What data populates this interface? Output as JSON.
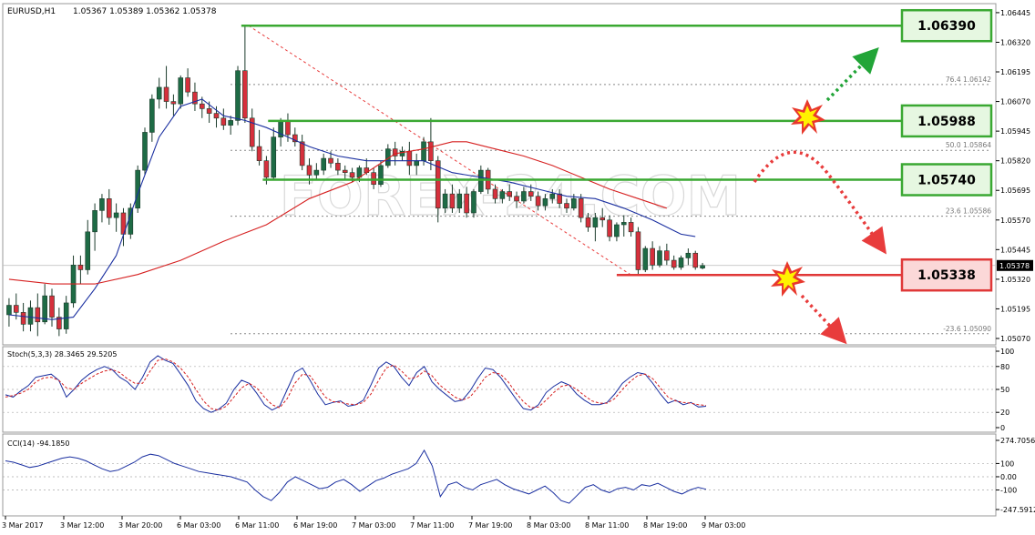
{
  "header": {
    "symbol": "EURUSD,H1",
    "ohlc": "1.05367 1.05389 1.05362 1.05378"
  },
  "watermark": "FOREX-24.COM",
  "colors": {
    "bull": "#1e6b45",
    "bear": "#d6303c",
    "fast_ma": "#1a2fa0",
    "slow_ma": "#d62020",
    "resistance": "#3aa832",
    "support": "#e03838",
    "resistance_box_fill": "#e6f7e1",
    "support_box_fill": "#fbd8d8",
    "stoch_main": "#1a2fa0",
    "stoch_signal": "#d62020",
    "cci": "#1a2fa0"
  },
  "chart_data": [
    {
      "type": "candlestick",
      "panel": "main",
      "ylim": [
        1.0507,
        1.0646
      ],
      "y_ticks": [
        "1.06445",
        "1.06320",
        "1.06195",
        "1.06070",
        "1.05945",
        "1.05820",
        "1.05695",
        "1.05570",
        "1.05445",
        "1.05320",
        "1.05195",
        "1.05070"
      ],
      "current_price": "1.05378",
      "x_ticks": [
        "3 Mar 2017",
        "3 Mar 12:00",
        "3 Mar 20:00",
        "6 Mar 03:00",
        "6 Mar 11:00",
        "6 Mar 19:00",
        "7 Mar 03:00",
        "7 Mar 11:00",
        "7 Mar 19:00",
        "8 Mar 03:00",
        "8 Mar 11:00",
        "8 Mar 19:00",
        "9 Mar 03:00"
      ],
      "candles": [
        [
          1.0517,
          1.0524,
          1.0512,
          1.0521
        ],
        [
          1.0521,
          1.0526,
          1.0515,
          1.0518
        ],
        [
          1.0518,
          1.0522,
          1.051,
          1.0513
        ],
        [
          1.0513,
          1.0523,
          1.051,
          1.052
        ],
        [
          1.052,
          1.0526,
          1.0508,
          1.0514
        ],
        [
          1.0514,
          1.053,
          1.0513,
          1.0525
        ],
        [
          1.0525,
          1.0528,
          1.0512,
          1.0516
        ],
        [
          1.0516,
          1.052,
          1.0508,
          1.0511
        ],
        [
          1.0511,
          1.0525,
          1.0509,
          1.0522
        ],
        [
          1.0522,
          1.0542,
          1.052,
          1.0538
        ],
        [
          1.0538,
          1.0542,
          1.053,
          1.0536
        ],
        [
          1.0536,
          1.0557,
          1.0534,
          1.0552
        ],
        [
          1.0552,
          1.0564,
          1.0544,
          1.0561
        ],
        [
          1.0561,
          1.0568,
          1.0556,
          1.0566
        ],
        [
          1.0566,
          1.057,
          1.0555,
          1.0558
        ],
        [
          1.0558,
          1.0564,
          1.0552,
          1.056
        ],
        [
          1.056,
          1.0562,
          1.0546,
          1.0551
        ],
        [
          1.0551,
          1.0564,
          1.0549,
          1.0562
        ],
        [
          1.0562,
          1.058,
          1.056,
          1.0578
        ],
        [
          1.0578,
          1.0596,
          1.0576,
          1.0594
        ],
        [
          1.0594,
          1.061,
          1.059,
          1.0608
        ],
        [
          1.0608,
          1.0617,
          1.0604,
          1.0613
        ],
        [
          1.0613,
          1.0622,
          1.0604,
          1.0607
        ],
        [
          1.0607,
          1.061,
          1.0601,
          1.0606
        ],
        [
          1.0606,
          1.0618,
          1.0604,
          1.0617
        ],
        [
          1.0617,
          1.0621,
          1.0609,
          1.0611
        ],
        [
          1.0611,
          1.0615,
          1.0603,
          1.0606
        ],
        [
          1.0606,
          1.0609,
          1.06,
          1.0604
        ],
        [
          1.0604,
          1.0607,
          1.0598,
          1.0602
        ],
        [
          1.0602,
          1.0605,
          1.0596,
          1.06
        ],
        [
          1.06,
          1.0604,
          1.0595,
          1.0597
        ],
        [
          1.0597,
          1.0601,
          1.0593,
          1.0599
        ],
        [
          1.0599,
          1.0622,
          1.0597,
          1.062
        ],
        [
          1.062,
          1.0639,
          1.0598,
          1.06
        ],
        [
          1.06,
          1.0604,
          1.0586,
          1.0588
        ],
        [
          1.0588,
          1.0595,
          1.058,
          1.0582
        ],
        [
          1.0582,
          1.0584,
          1.0572,
          1.0575
        ],
        [
          1.0575,
          1.0596,
          1.0574,
          1.0592
        ],
        [
          1.0592,
          1.06,
          1.0588,
          1.0599
        ],
        [
          1.0599,
          1.0602,
          1.059,
          1.0593
        ],
        [
          1.0593,
          1.0596,
          1.0588,
          1.059
        ],
        [
          1.059,
          1.0593,
          1.0578,
          1.058
        ],
        [
          1.058,
          1.0583,
          1.0572,
          1.0576
        ],
        [
          1.0576,
          1.0581,
          1.0574,
          1.0578
        ],
        [
          1.0578,
          1.0585,
          1.0576,
          1.0583
        ],
        [
          1.0583,
          1.0586,
          1.0579,
          1.0581
        ],
        [
          1.0581,
          1.0583,
          1.0576,
          1.0578
        ],
        [
          1.0578,
          1.058,
          1.0574,
          1.0577
        ],
        [
          1.0577,
          1.0579,
          1.0573,
          1.0575
        ],
        [
          1.0575,
          1.058,
          1.0573,
          1.0579
        ],
        [
          1.0579,
          1.0583,
          1.0576,
          1.0577
        ],
        [
          1.0577,
          1.0579,
          1.057,
          1.0572
        ],
        [
          1.0572,
          1.0582,
          1.0571,
          1.058
        ],
        [
          1.058,
          1.0589,
          1.0579,
          1.0587
        ],
        [
          1.0587,
          1.059,
          1.058,
          1.0584
        ],
        [
          1.0584,
          1.0588,
          1.0582,
          1.0586
        ],
        [
          1.0586,
          1.059,
          1.0576,
          1.058
        ],
        [
          1.058,
          1.0585,
          1.0576,
          1.0582
        ],
        [
          1.0582,
          1.0592,
          1.058,
          1.059
        ],
        [
          1.059,
          1.06,
          1.0578,
          1.0582
        ],
        [
          1.0582,
          1.0584,
          1.0556,
          1.0562
        ],
        [
          1.0562,
          1.057,
          1.056,
          1.0568
        ],
        [
          1.0568,
          1.0572,
          1.056,
          1.0562
        ],
        [
          1.0562,
          1.057,
          1.056,
          1.0568
        ],
        [
          1.0568,
          1.0571,
          1.0558,
          1.056
        ],
        [
          1.056,
          1.057,
          1.0558,
          1.0569
        ],
        [
          1.0569,
          1.058,
          1.0568,
          1.0578
        ],
        [
          1.0578,
          1.0579,
          1.0568,
          1.057
        ],
        [
          1.057,
          1.0572,
          1.0564,
          1.0566
        ],
        [
          1.0566,
          1.057,
          1.0564,
          1.0569
        ],
        [
          1.0569,
          1.0572,
          1.0565,
          1.0567
        ],
        [
          1.0567,
          1.0569,
          1.0562,
          1.0565
        ],
        [
          1.0565,
          1.0571,
          1.0564,
          1.0569
        ],
        [
          1.0569,
          1.0572,
          1.0565,
          1.0567
        ],
        [
          1.0567,
          1.0569,
          1.0561,
          1.0563
        ],
        [
          1.0563,
          1.0568,
          1.0561,
          1.0566
        ],
        [
          1.0566,
          1.057,
          1.0564,
          1.0568
        ],
        [
          1.0568,
          1.057,
          1.0562,
          1.0564
        ],
        [
          1.0564,
          1.0566,
          1.056,
          1.0562
        ],
        [
          1.0562,
          1.0568,
          1.0561,
          1.0566
        ],
        [
          1.0566,
          1.0568,
          1.0556,
          1.0558
        ],
        [
          1.0558,
          1.056,
          1.0552,
          1.0554
        ],
        [
          1.0554,
          1.056,
          1.0548,
          1.0558
        ],
        [
          1.0558,
          1.0562,
          1.0554,
          1.0557
        ],
        [
          1.0557,
          1.0559,
          1.0548,
          1.055
        ],
        [
          1.055,
          1.0556,
          1.0548,
          1.0555
        ],
        [
          1.0555,
          1.0559,
          1.055,
          1.0556
        ],
        [
          1.0556,
          1.0558,
          1.055,
          1.0552
        ],
        [
          1.0552,
          1.0554,
          1.0534,
          1.0536
        ],
        [
          1.0536,
          1.0546,
          1.0535,
          1.0545
        ],
        [
          1.0545,
          1.0548,
          1.0536,
          1.0538
        ],
        [
          1.0538,
          1.0546,
          1.0537,
          1.0544
        ],
        [
          1.0544,
          1.0547,
          1.0538,
          1.054
        ],
        [
          1.054,
          1.0542,
          1.0536,
          1.0537
        ],
        [
          1.0537,
          1.0542,
          1.0536,
          1.0541
        ],
        [
          1.0541,
          1.0545,
          1.0538,
          1.0543
        ],
        [
          1.0543,
          1.0544,
          1.0536,
          1.0537
        ],
        [
          1.05367,
          1.05389,
          1.05362,
          1.05378
        ]
      ],
      "fast_ma": [
        [
          0,
          1.0517
        ],
        [
          6,
          1.0515
        ],
        [
          9,
          1.0516
        ],
        [
          12,
          1.0528
        ],
        [
          15,
          1.0542
        ],
        [
          18,
          1.0568
        ],
        [
          21,
          1.0592
        ],
        [
          24,
          1.0605
        ],
        [
          27,
          1.0608
        ],
        [
          30,
          1.0601
        ],
        [
          33,
          1.0599
        ],
        [
          36,
          1.0596
        ],
        [
          39,
          1.0592
        ],
        [
          42,
          1.0588
        ],
        [
          46,
          1.0584
        ],
        [
          50,
          1.0582
        ],
        [
          54,
          1.0582
        ],
        [
          58,
          1.0582
        ],
        [
          62,
          1.0577
        ],
        [
          66,
          1.0575
        ],
        [
          70,
          1.0573
        ],
        [
          74,
          1.057
        ],
        [
          78,
          1.0567
        ],
        [
          82,
          1.0566
        ],
        [
          86,
          1.0562
        ],
        [
          90,
          1.0557
        ],
        [
          94,
          1.0551
        ],
        [
          96,
          1.055
        ]
      ],
      "slow_ma": [
        [
          0,
          1.0532
        ],
        [
          6,
          1.053
        ],
        [
          12,
          1.053
        ],
        [
          18,
          1.0534
        ],
        [
          24,
          1.054
        ],
        [
          30,
          1.0548
        ],
        [
          36,
          1.0555
        ],
        [
          42,
          1.0566
        ],
        [
          48,
          1.0573
        ],
        [
          54,
          1.0585
        ],
        [
          58,
          1.0587
        ],
        [
          62,
          1.059
        ],
        [
          64,
          1.059
        ],
        [
          68,
          1.0587
        ],
        [
          72,
          1.0584
        ],
        [
          76,
          1.058
        ],
        [
          80,
          1.0575
        ],
        [
          84,
          1.057
        ],
        [
          88,
          1.0566
        ],
        [
          92,
          1.0562
        ]
      ],
      "fibonacci_levels": [
        {
          "label": "76.4 1.06142",
          "value": 1.06142
        },
        {
          "label": "50.0 1.05864",
          "value": 1.05864
        },
        {
          "label": "23.6 1.05586",
          "value": 1.05586
        },
        {
          "label": "-23.6 1.05090",
          "value": 1.0509
        }
      ],
      "horizontal_levels": [
        {
          "label": "1.06390",
          "value": 1.0639,
          "kind": "resistance"
        },
        {
          "label": "1.05988",
          "value": 1.05988,
          "kind": "resistance"
        },
        {
          "label": "1.05740",
          "value": 1.0574,
          "kind": "resistance"
        },
        {
          "label": "1.05338",
          "value": 1.05338,
          "kind": "support"
        }
      ]
    },
    {
      "type": "line",
      "panel": "stochastic",
      "title": "Stoch(5,3,3) 28.3465 29.5205",
      "ylim": [
        0,
        100
      ],
      "y_ticks": [
        "100",
        "80",
        "50",
        "20",
        "0"
      ],
      "series": [
        {
          "values": [
            43,
            40,
            48,
            55,
            66,
            68,
            70,
            62,
            40,
            50,
            62,
            70,
            76,
            80,
            76,
            66,
            60,
            50,
            66,
            86,
            94,
            88,
            84,
            70,
            55,
            35,
            25,
            20,
            24,
            32,
            50,
            62,
            58,
            45,
            30,
            23,
            28,
            50,
            72,
            78,
            62,
            44,
            30,
            33,
            35,
            28,
            30,
            36,
            56,
            78,
            86,
            80,
            66,
            55,
            72,
            80,
            60,
            50,
            42,
            34,
            36,
            48,
            64,
            78,
            76,
            66,
            52,
            38,
            25,
            23,
            30,
            46,
            54,
            60,
            56,
            44,
            36,
            30,
            30,
            33,
            44,
            58,
            66,
            72,
            70,
            58,
            44,
            32,
            36,
            30,
            33,
            27,
            28
          ]
        },
        {
          "values": [
            40,
            42,
            45,
            50,
            60,
            65,
            66,
            62,
            52,
            50,
            58,
            64,
            70,
            74,
            76,
            72,
            64,
            58,
            58,
            74,
            88,
            90,
            86,
            78,
            66,
            50,
            35,
            25,
            23,
            28,
            40,
            52,
            58,
            52,
            40,
            30,
            26,
            38,
            58,
            70,
            68,
            54,
            40,
            34,
            33,
            31,
            30,
            33,
            44,
            62,
            78,
            82,
            74,
            64,
            66,
            74,
            68,
            56,
            48,
            40,
            36,
            40,
            52,
            66,
            72,
            70,
            60,
            46,
            34,
            26,
            27,
            36,
            46,
            54,
            56,
            50,
            42,
            35,
            32,
            32,
            38,
            50,
            60,
            68,
            70,
            64,
            52,
            40,
            35,
            33,
            32,
            30,
            29
          ]
        }
      ]
    },
    {
      "type": "line",
      "panel": "cci",
      "title": "CCI(14) -94.1850",
      "ylim": [
        -247.5912,
        274.7056
      ],
      "y_ticks": [
        "274.7056",
        "100",
        "0.00",
        "-100",
        "-247.5912"
      ],
      "series": [
        {
          "values": [
            120,
            110,
            90,
            70,
            80,
            100,
            120,
            140,
            150,
            140,
            120,
            90,
            60,
            40,
            50,
            80,
            110,
            150,
            170,
            160,
            130,
            100,
            80,
            60,
            40,
            30,
            20,
            10,
            0,
            -20,
            -40,
            -100,
            -150,
            -180,
            -120,
            -40,
            0,
            -30,
            -60,
            -90,
            -80,
            -40,
            -20,
            -60,
            -110,
            -70,
            -30,
            -10,
            20,
            40,
            60,
            100,
            200,
            80,
            -150,
            -60,
            -40,
            -80,
            -100,
            -60,
            -40,
            -20,
            -60,
            -90,
            -110,
            -130,
            -100,
            -70,
            -120,
            -180,
            -200,
            -140,
            -80,
            -60,
            -100,
            -120,
            -90,
            -80,
            -100,
            -60,
            -70,
            -50,
            -80,
            -110,
            -130,
            -100,
            -80,
            -94
          ]
        }
      ]
    }
  ]
}
